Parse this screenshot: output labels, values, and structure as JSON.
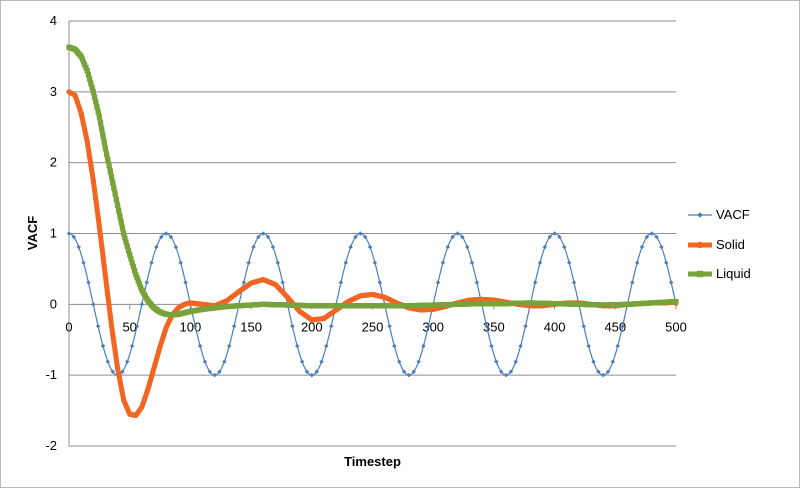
{
  "chart_data": {
    "type": "line",
    "xlabel": "Timestep",
    "ylabel": "VACF",
    "xlim": [
      0,
      500
    ],
    "ylim": [
      -2,
      4
    ],
    "x_ticks": [
      "0",
      "50",
      "100",
      "150",
      "200",
      "250",
      "300",
      "350",
      "400",
      "450",
      "500"
    ],
    "y_ticks": [
      "-2",
      "-1",
      "0",
      "1",
      "2",
      "3",
      "4"
    ],
    "grid": "horizontal",
    "legend_position": "right",
    "series": [
      {
        "name": "VACF",
        "color": "#4a7ebb",
        "marker": "diamond",
        "sample_step": 4,
        "points": [
          [
            0,
            1.0
          ],
          [
            20,
            0.0
          ],
          [
            40,
            -1.0
          ],
          [
            60,
            0.0
          ],
          [
            80,
            1.0
          ],
          [
            100,
            0.0
          ],
          [
            120,
            -1.0
          ],
          [
            140,
            0.0
          ],
          [
            160,
            1.0
          ],
          [
            180,
            0.0
          ],
          [
            200,
            -1.0
          ],
          [
            220,
            0.0
          ],
          [
            240,
            1.0
          ],
          [
            260,
            0.0
          ],
          [
            280,
            -1.0
          ],
          [
            300,
            0.0
          ],
          [
            320,
            1.0
          ],
          [
            340,
            0.0
          ],
          [
            360,
            -1.0
          ],
          [
            380,
            0.0
          ],
          [
            400,
            1.0
          ],
          [
            420,
            0.0
          ],
          [
            440,
            -1.0
          ],
          [
            460,
            0.0
          ],
          [
            480,
            1.0
          ],
          [
            500,
            0.0
          ]
        ]
      },
      {
        "name": "Solid",
        "color": "#f26522",
        "marker": "circle",
        "sample_step": 1,
        "points": [
          [
            0,
            3.0
          ],
          [
            5,
            2.95
          ],
          [
            10,
            2.7
          ],
          [
            15,
            2.3
          ],
          [
            20,
            1.75
          ],
          [
            25,
            1.1
          ],
          [
            30,
            0.4
          ],
          [
            35,
            -0.3
          ],
          [
            40,
            -0.9
          ],
          [
            45,
            -1.35
          ],
          [
            50,
            -1.55
          ],
          [
            55,
            -1.57
          ],
          [
            60,
            -1.45
          ],
          [
            65,
            -1.2
          ],
          [
            70,
            -0.9
          ],
          [
            75,
            -0.6
          ],
          [
            80,
            -0.33
          ],
          [
            85,
            -0.15
          ],
          [
            90,
            -0.05
          ],
          [
            95,
            0.0
          ],
          [
            100,
            0.02
          ],
          [
            110,
            0.0
          ],
          [
            120,
            -0.02
          ],
          [
            130,
            0.05
          ],
          [
            140,
            0.18
          ],
          [
            150,
            0.3
          ],
          [
            160,
            0.35
          ],
          [
            170,
            0.28
          ],
          [
            180,
            0.1
          ],
          [
            190,
            -0.1
          ],
          [
            200,
            -0.22
          ],
          [
            210,
            -0.2
          ],
          [
            220,
            -0.08
          ],
          [
            230,
            0.04
          ],
          [
            240,
            0.12
          ],
          [
            250,
            0.14
          ],
          [
            260,
            0.1
          ],
          [
            270,
            0.02
          ],
          [
            280,
            -0.05
          ],
          [
            290,
            -0.08
          ],
          [
            300,
            -0.07
          ],
          [
            310,
            -0.03
          ],
          [
            320,
            0.02
          ],
          [
            330,
            0.06
          ],
          [
            340,
            0.07
          ],
          [
            350,
            0.06
          ],
          [
            360,
            0.03
          ],
          [
            370,
            0.0
          ],
          [
            380,
            -0.02
          ],
          [
            390,
            -0.02
          ],
          [
            400,
            0.0
          ],
          [
            410,
            0.02
          ],
          [
            420,
            0.02
          ],
          [
            430,
            0.0
          ],
          [
            440,
            -0.02
          ],
          [
            450,
            -0.02
          ],
          [
            460,
            0.0
          ],
          [
            470,
            0.01
          ],
          [
            480,
            0.02
          ],
          [
            490,
            0.02
          ],
          [
            500,
            0.03
          ]
        ]
      },
      {
        "name": "Liquid",
        "color": "#77a33a",
        "marker": "square",
        "sample_step": 1,
        "points": [
          [
            0,
            3.63
          ],
          [
            5,
            3.6
          ],
          [
            10,
            3.5
          ],
          [
            15,
            3.3
          ],
          [
            20,
            3.0
          ],
          [
            25,
            2.65
          ],
          [
            30,
            2.2
          ],
          [
            35,
            1.8
          ],
          [
            40,
            1.4
          ],
          [
            45,
            1.0
          ],
          [
            50,
            0.7
          ],
          [
            55,
            0.42
          ],
          [
            60,
            0.2
          ],
          [
            65,
            0.05
          ],
          [
            70,
            -0.05
          ],
          [
            75,
            -0.11
          ],
          [
            80,
            -0.14
          ],
          [
            85,
            -0.15
          ],
          [
            90,
            -0.14
          ],
          [
            100,
            -0.1
          ],
          [
            110,
            -0.07
          ],
          [
            120,
            -0.05
          ],
          [
            130,
            -0.03
          ],
          [
            140,
            -0.02
          ],
          [
            150,
            -0.01
          ],
          [
            160,
            0.0
          ],
          [
            180,
            -0.01
          ],
          [
            200,
            -0.02
          ],
          [
            220,
            -0.02
          ],
          [
            240,
            -0.02
          ],
          [
            260,
            -0.02
          ],
          [
            280,
            -0.02
          ],
          [
            300,
            -0.01
          ],
          [
            320,
            0.0
          ],
          [
            340,
            0.01
          ],
          [
            360,
            0.01
          ],
          [
            380,
            0.02
          ],
          [
            400,
            0.01
          ],
          [
            420,
            0.0
          ],
          [
            440,
            -0.01
          ],
          [
            460,
            0.0
          ],
          [
            480,
            0.02
          ],
          [
            500,
            0.04
          ]
        ]
      }
    ]
  }
}
